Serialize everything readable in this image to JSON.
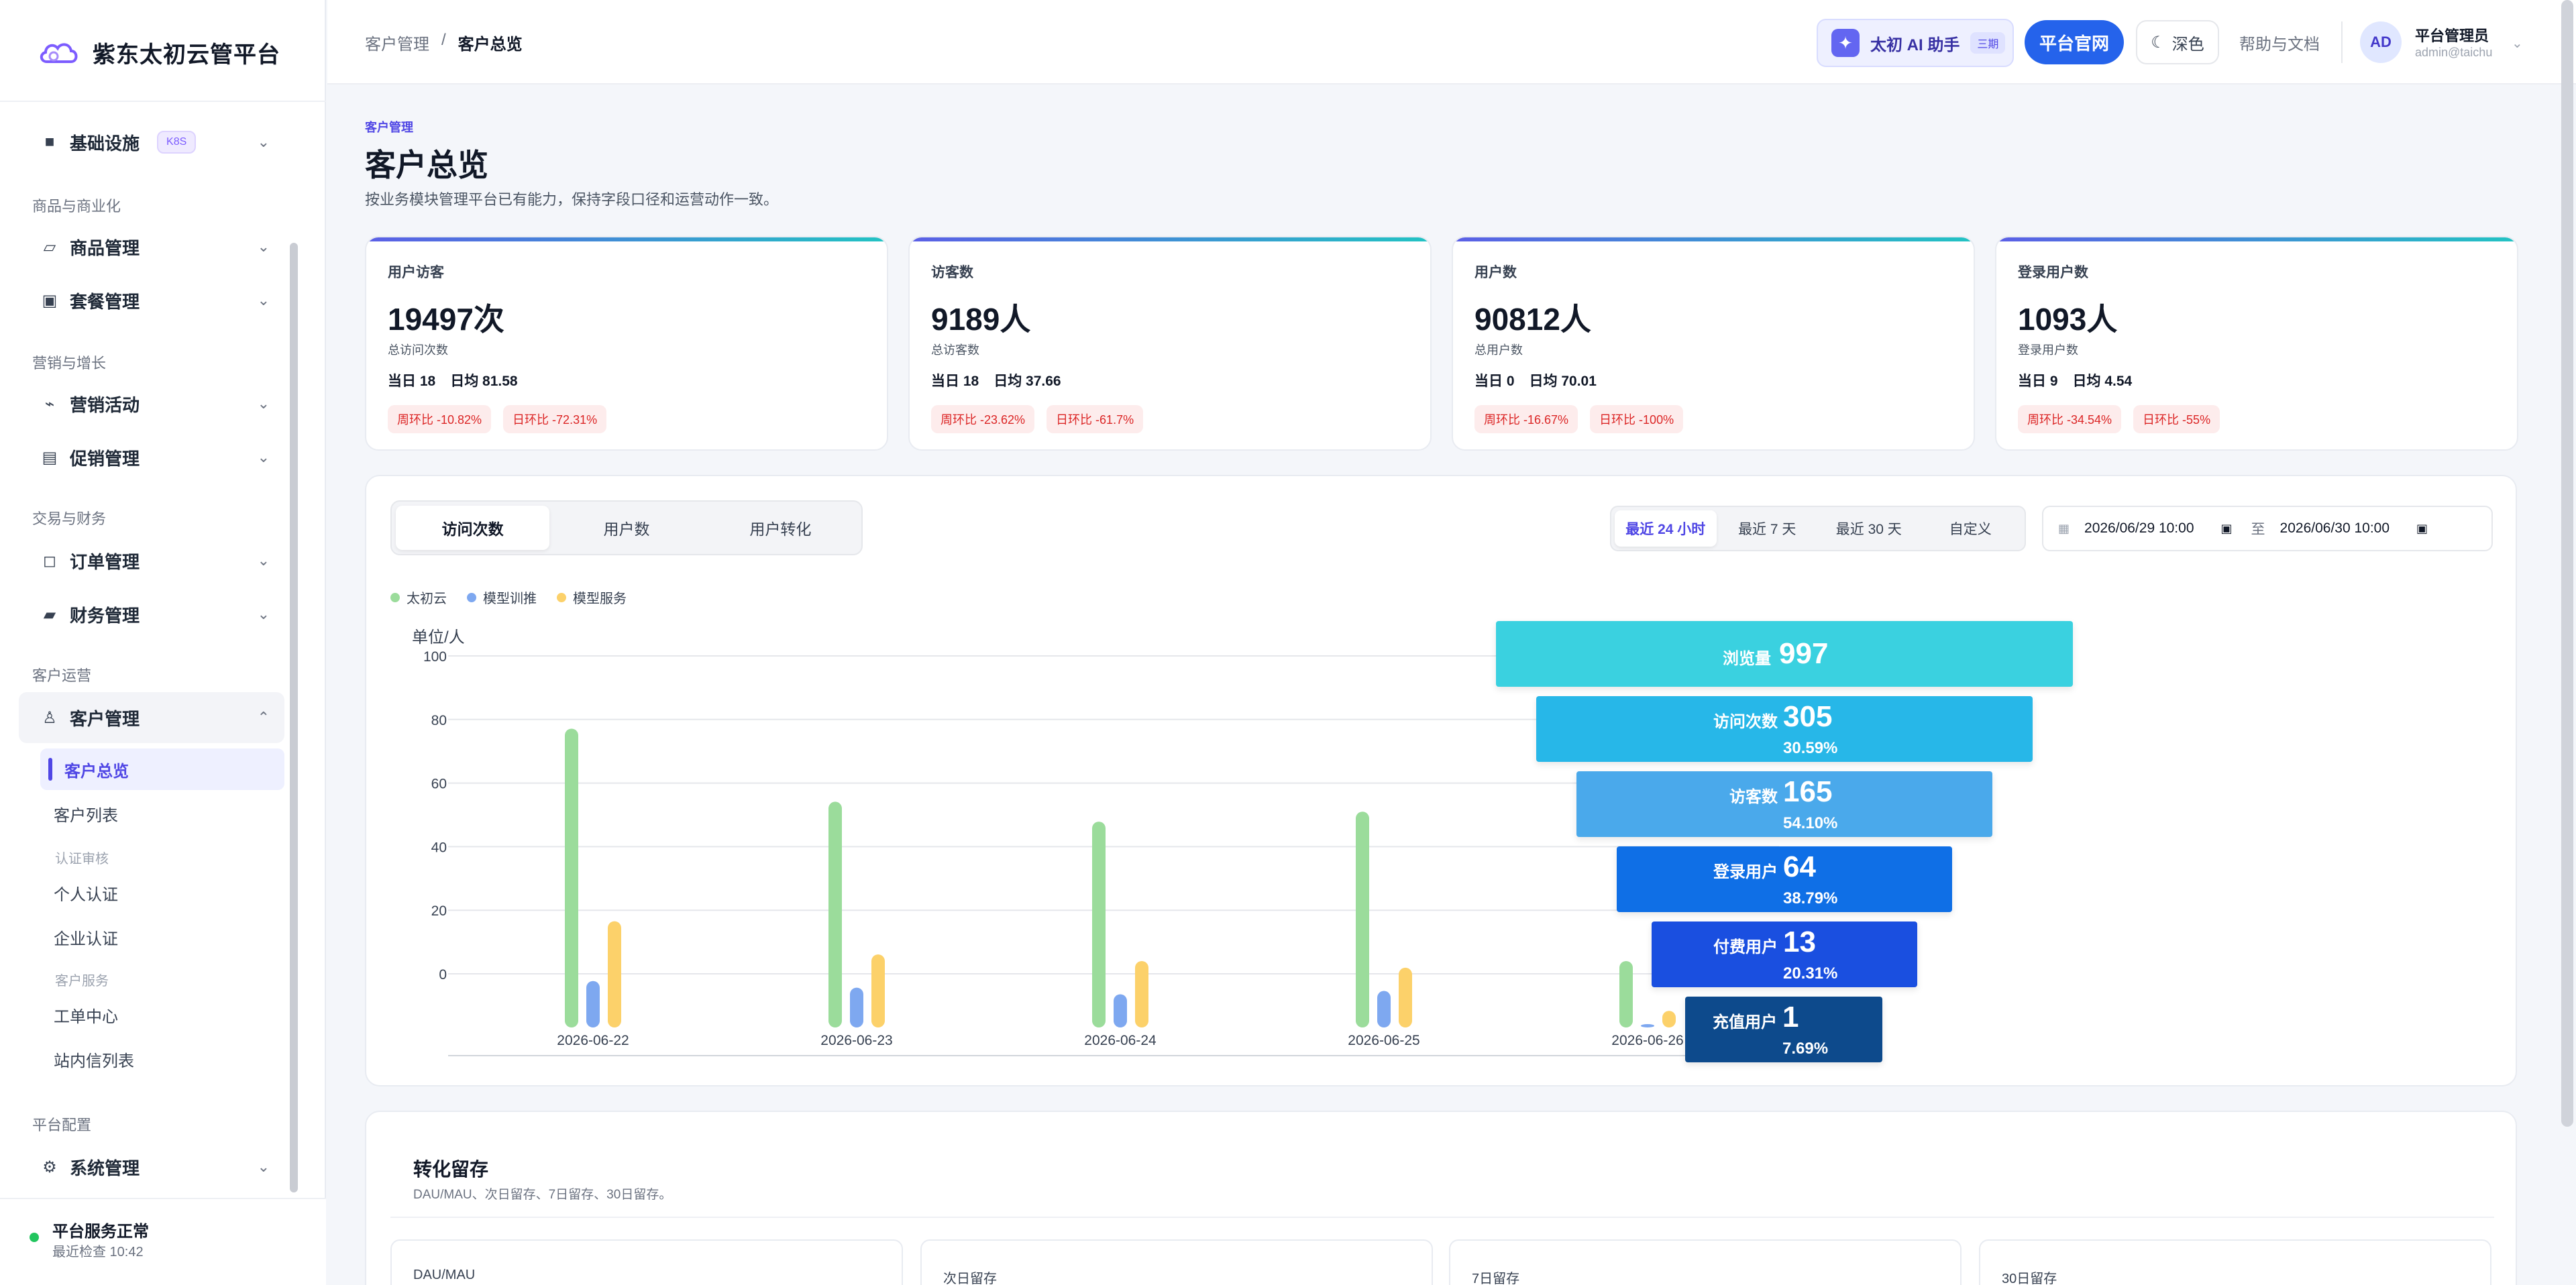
{
  "brand": {
    "name": "紫东太初云管平台"
  },
  "sidebar": {
    "groups": {
      "commerce": "商品与商业化",
      "marketing": "营销与增长",
      "trade": "交易与财务",
      "customer": "客户运营",
      "platform": "平台配置"
    },
    "items": {
      "infra": {
        "label": "基础设施",
        "badge": "K8S",
        "icon": "server-icon"
      },
      "product": {
        "label": "商品管理",
        "icon": "tag-icon"
      },
      "package": {
        "label": "套餐管理",
        "icon": "package-icon"
      },
      "campaign": {
        "label": "营销活动",
        "icon": "megaphone-icon"
      },
      "promo": {
        "label": "促销管理",
        "icon": "ticket-icon"
      },
      "order": {
        "label": "订单管理",
        "icon": "receipt-icon"
      },
      "finance": {
        "label": "财务管理",
        "icon": "wallet-icon"
      },
      "customer": {
        "label": "客户管理",
        "icon": "user-icon"
      },
      "system": {
        "label": "系统管理",
        "icon": "gear-icon"
      }
    },
    "sub": {
      "overview": "客户总览",
      "list": "客户列表",
      "auth_group": "认证审核",
      "personal": "个人认证",
      "enterprise": "企业认证",
      "service_group": "客户服务",
      "tickets": "工单中心",
      "messages": "站内信列表"
    },
    "footer": {
      "status": "平台服务正常",
      "checked": "最近检查 10:42"
    }
  },
  "header": {
    "crumb_parent": "客户管理",
    "crumb_sep": "/",
    "crumb_current": "客户总览",
    "ai_label": "太初 AI 助手",
    "ai_tag": "三期",
    "site_label": "平台官网",
    "theme_label": "深色",
    "help_label": "帮助与文档",
    "avatar": "AD",
    "user_name": "平台管理员",
    "user_mail": "admin@taichu"
  },
  "page": {
    "eyebrow": "客户管理",
    "title": "客户总览",
    "desc": "按业务模块管理平台已有能力，保持字段口径和运营动作一致。"
  },
  "stats": [
    {
      "title": "用户访客",
      "value": "19497次",
      "sub": "总访问次数",
      "today": "当日 18",
      "avg": "日均 81.58",
      "wow": "周环比 -10.82%",
      "dod": "日环比 -72.31%"
    },
    {
      "title": "访客数",
      "value": "9189人",
      "sub": "总访客数",
      "today": "当日 18",
      "avg": "日均 37.66",
      "wow": "周环比 -23.62%",
      "dod": "日环比 -61.7%"
    },
    {
      "title": "用户数",
      "value": "90812人",
      "sub": "总用户数",
      "today": "当日 0",
      "avg": "日均 70.01",
      "wow": "周环比 -16.67%",
      "dod": "日环比 -100%"
    },
    {
      "title": "登录用户数",
      "value": "1093人",
      "sub": "登录用户数",
      "today": "当日 9",
      "avg": "日均 4.54",
      "wow": "周环比 -34.54%",
      "dod": "日环比 -55%"
    }
  ],
  "tabs": [
    "访问次数",
    "用户数",
    "用户转化"
  ],
  "ranges": [
    "最近 24 小时",
    "最近 7 天",
    "最近 30 天",
    "自定义"
  ],
  "date_range": {
    "start": "2026/06/29 10:00",
    "to": "至",
    "end": "2026/06/30 10:00"
  },
  "chart_data": {
    "type": "bar",
    "unit_label": "单位/人",
    "categories": [
      "2026-06-22",
      "2026-06-23",
      "2026-06-24",
      "2026-06-25",
      "2026-06-26"
    ],
    "y_ticks": [
      "100",
      "80",
      "60",
      "40",
      "20",
      "0"
    ],
    "ylim": [
      0,
      100
    ],
    "legend_position": "top-left",
    "series": [
      {
        "name": "太初云",
        "color": "#9bdc9b",
        "values": [
          90,
          68,
          62,
          65,
          20
        ]
      },
      {
        "name": "模型训推",
        "color": "#7ea8f0",
        "values": [
          14,
          12,
          10,
          11,
          1
        ]
      },
      {
        "name": "模型服务",
        "color": "#fcd16a",
        "values": [
          32,
          22,
          20,
          18,
          5
        ]
      }
    ]
  },
  "funnel": [
    {
      "label": "浏览量",
      "value": "997",
      "pct": "",
      "color": "#3ad1e0"
    },
    {
      "label": "访问次数",
      "value": "305",
      "pct": "30.59%",
      "color": "#27b7e8"
    },
    {
      "label": "访客数",
      "value": "165",
      "pct": "54.10%",
      "color": "#4aa9eb"
    },
    {
      "label": "登录用户",
      "value": "64",
      "pct": "38.79%",
      "color": "#0f6fe6"
    },
    {
      "label": "付费用户",
      "value": "13",
      "pct": "20.31%",
      "color": "#1a4fe0"
    },
    {
      "label": "充值用户",
      "value": "1",
      "pct": "7.69%",
      "color": "#0d4a8c"
    }
  ],
  "retention": {
    "title": "转化留存",
    "desc": "DAU/MAU、次日留存、7日留存、30日留存。",
    "cards": [
      "DAU/MAU",
      "次日留存",
      "7日留存",
      "30日留存"
    ]
  }
}
